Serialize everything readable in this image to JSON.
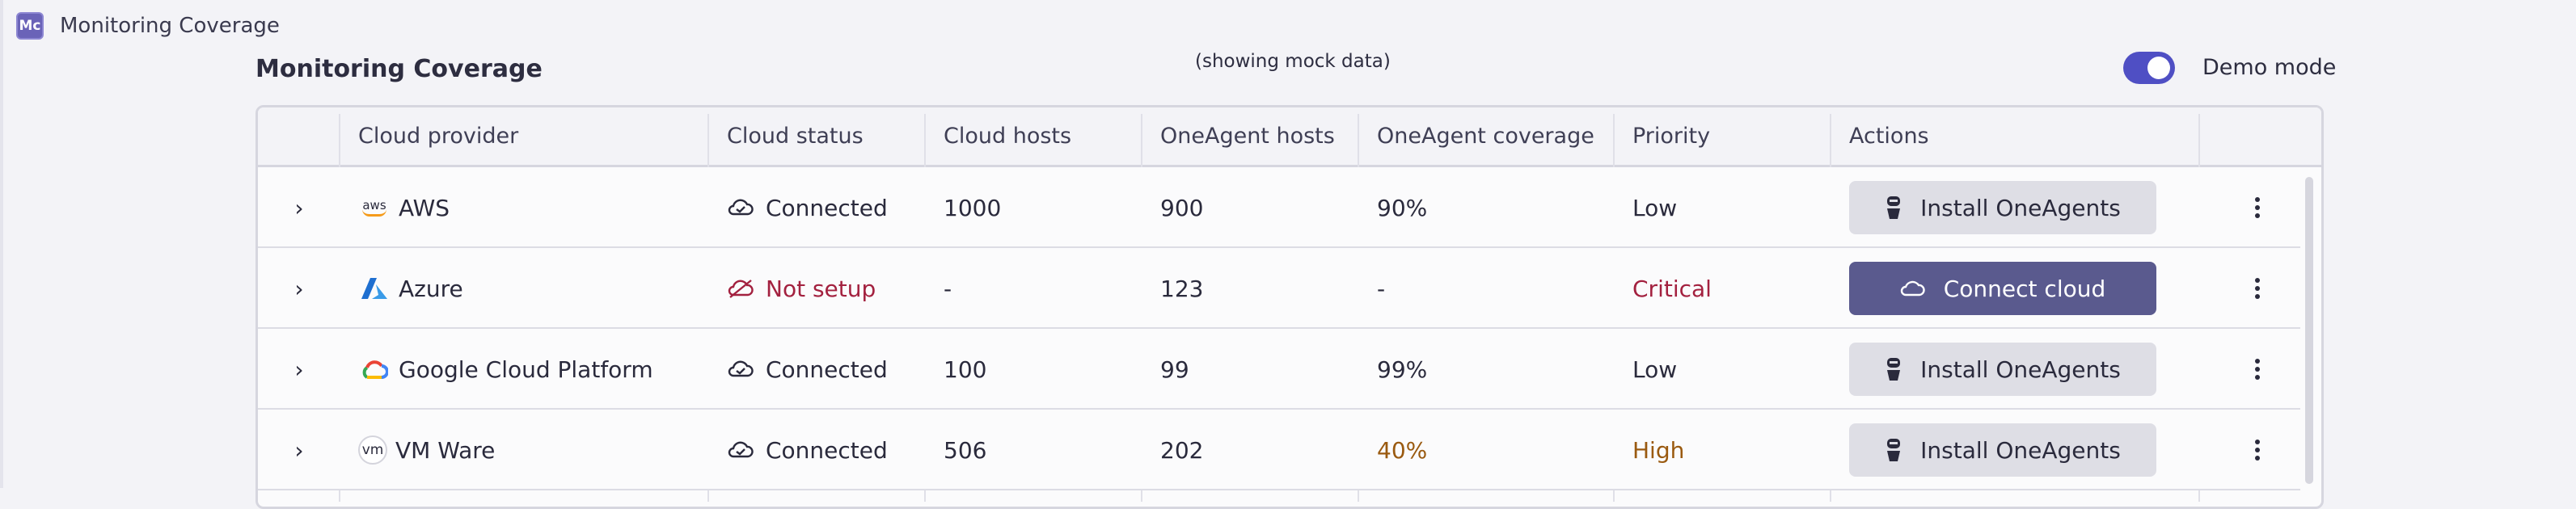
{
  "app": {
    "icon_label": "Mc",
    "title": "Monitoring Coverage"
  },
  "page": {
    "title": "Monitoring Coverage",
    "mock_note": "(showing mock data)",
    "demo_mode_label": "Demo mode",
    "demo_mode_on": true
  },
  "colors": {
    "accent": "#4f4fc4",
    "primary_button": "#5a5a8e",
    "critical": "#a3213f",
    "high": "#9a5a10",
    "aws_orange": "#f59b1b",
    "azure_blue": "#2b7bd8"
  },
  "table": {
    "columns": [
      "Cloud provider",
      "Cloud status",
      "Cloud hosts",
      "OneAgent hosts",
      "OneAgent coverage",
      "Priority",
      "Actions"
    ],
    "rows": [
      {
        "provider": "AWS",
        "logo": "aws-logo",
        "status": "Connected",
        "status_icon": "cloud-check-icon",
        "cloud_hosts": "1000",
        "oneagent_hosts": "900",
        "coverage": "90%",
        "priority": "Low",
        "action": "Install OneAgents",
        "action_icon": "oneagent-icon"
      },
      {
        "provider": "Azure",
        "logo": "azure-logo",
        "status": "Not setup",
        "status_icon": "cloud-off-icon",
        "cloud_hosts": "-",
        "oneagent_hosts": "123",
        "coverage": "-",
        "priority": "Critical",
        "action": "Connect cloud",
        "action_icon": "cloud-icon"
      },
      {
        "provider": "Google Cloud Platform",
        "logo": "gcp-logo",
        "status": "Connected",
        "status_icon": "cloud-check-icon",
        "cloud_hosts": "100",
        "oneagent_hosts": "99",
        "coverage": "99%",
        "priority": "Low",
        "action": "Install OneAgents",
        "action_icon": "oneagent-icon"
      },
      {
        "provider": "VM Ware",
        "logo": "vm-logo",
        "logo_text": "vm",
        "status": "Connected",
        "status_icon": "cloud-check-icon",
        "cloud_hosts": "506",
        "oneagent_hosts": "202",
        "coverage": "40%",
        "priority": "High",
        "action": "Install OneAgents",
        "action_icon": "oneagent-icon"
      }
    ],
    "aws_logo_text": "aws"
  }
}
